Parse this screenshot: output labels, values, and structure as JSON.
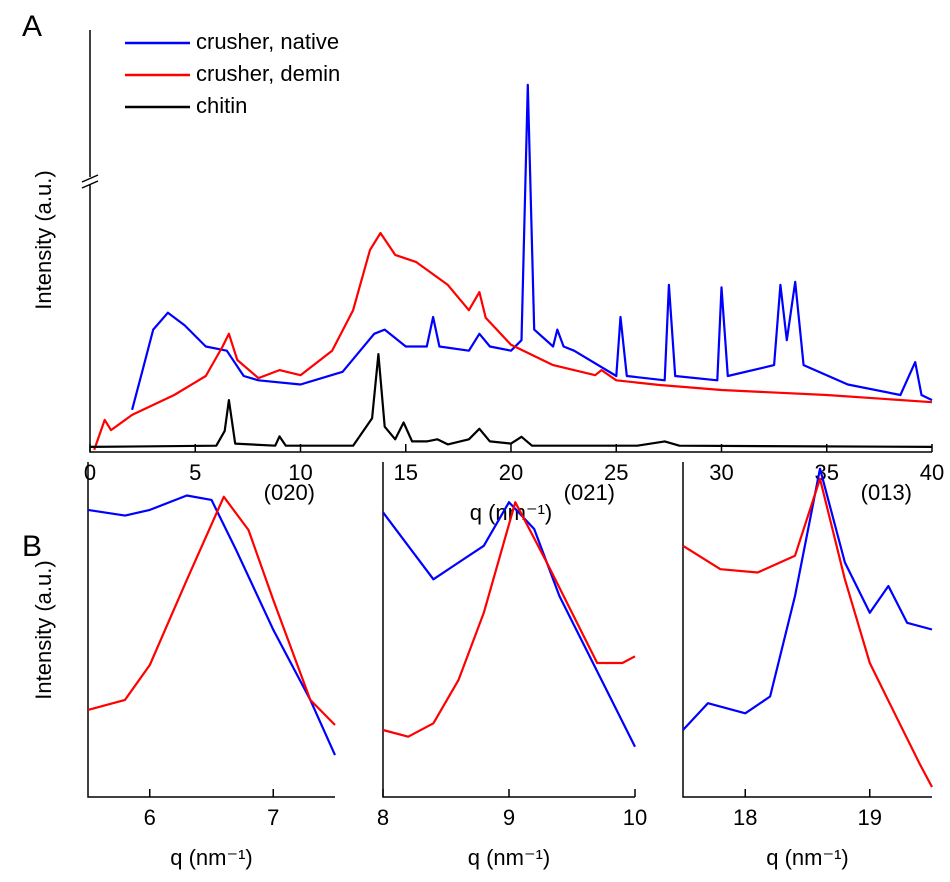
{
  "chart_data": [
    {
      "type": "line",
      "panel_label": "A",
      "xlabel": "q (nm⁻¹)",
      "ylabel": "Intensity (a.u.)",
      "xlim": [
        0,
        40
      ],
      "xticks": [
        0,
        5,
        10,
        15,
        20,
        25,
        30,
        35,
        40
      ],
      "ylim": [
        0,
        100
      ],
      "legend": "upper-left",
      "series": [
        {
          "name": "crusher, native",
          "color": "#0000ff",
          "x": [
            2,
            2.5,
            3,
            3.7,
            4.5,
            5.5,
            6.5,
            7.3,
            8,
            10,
            12,
            13.5,
            14,
            15,
            16,
            16.3,
            16.6,
            18,
            18.5,
            19,
            20,
            20.5,
            20.8,
            21.1,
            22,
            22.2,
            22.5,
            23,
            25,
            25.2,
            25.5,
            27.3,
            27.5,
            27.8,
            29.8,
            30,
            30.3,
            32.5,
            32.8,
            33.1,
            33.5,
            33.9,
            36,
            38.5,
            39.2,
            39.5,
            40
          ],
          "values": [
            10,
            19.4,
            29,
            33,
            30,
            25,
            24,
            18,
            17,
            16,
            19,
            28,
            29,
            25,
            25,
            32,
            25,
            24,
            28,
            25,
            24,
            26.5,
            87,
            29,
            25,
            29,
            25,
            24,
            18,
            32,
            18,
            17,
            39.6,
            18,
            17,
            39,
            18,
            20.6,
            39.6,
            26.5,
            40.3,
            20.6,
            16,
            13.5,
            21.3,
            13.5,
            12.3
          ]
        },
        {
          "name": "crusher, demin",
          "color": "#ff0000",
          "x": [
            0.2,
            0.7,
            1,
            2,
            4,
            5.5,
            6.3,
            6.6,
            7,
            8,
            9,
            10,
            11.5,
            12.5,
            13.3,
            13.8,
            14.5,
            15.5,
            17,
            18,
            18.5,
            18.8,
            20,
            22,
            24,
            24.3,
            25,
            27,
            30,
            35,
            40
          ],
          "values": [
            0.5,
            7.6,
            5.2,
            8.8,
            13.5,
            18,
            25,
            28,
            21.8,
            17.5,
            19.4,
            18.2,
            24,
            33.6,
            47.9,
            51.9,
            46.7,
            45,
            39.6,
            33.6,
            37.9,
            31.8,
            25.4,
            20.6,
            18.2,
            19.4,
            17,
            15.9,
            14.7,
            13.5,
            11.8
          ]
        },
        {
          "name": "chitin",
          "color": "#000000",
          "x": [
            0,
            6,
            6.4,
            6.6,
            6.9,
            8.8,
            9,
            9.3,
            12.5,
            13.4,
            13.7,
            14,
            14.5,
            14.9,
            15.3,
            16,
            16.5,
            17,
            18,
            18.5,
            19,
            20,
            20.5,
            21,
            26,
            27.3,
            28,
            40
          ],
          "values": [
            1.2,
            1.5,
            5,
            12.3,
            2,
            1.5,
            3.7,
            1.5,
            1.5,
            8,
            23.2,
            6,
            3,
            7,
            2.5,
            2.5,
            3,
            1.8,
            3,
            5.5,
            2.5,
            2,
            3.6,
            1.5,
            1.5,
            2.5,
            1.5,
            1.2
          ]
        }
      ]
    },
    {
      "type": "line",
      "panel_label": "B",
      "annotation": "(020)",
      "xlabel": "q (nm⁻¹)",
      "ylabel": "Intensity (a.u.)",
      "xlim": [
        5.5,
        7.5
      ],
      "xticks": [
        6,
        7
      ],
      "ylim": [
        0,
        100
      ],
      "series": [
        {
          "color": "#0000ff",
          "x": [
            5.5,
            5.8,
            6.0,
            6.3,
            6.5,
            6.7,
            7.0,
            7.3,
            7.5
          ],
          "values": [
            85.7,
            84,
            85.7,
            90,
            88.7,
            73.7,
            49.9,
            29,
            12.5
          ]
        },
        {
          "color": "#ff0000",
          "x": [
            5.5,
            5.8,
            6.0,
            6.3,
            6.6,
            6.8,
            7.0,
            7.3,
            7.5
          ],
          "values": [
            26,
            29,
            39.4,
            64.8,
            89.6,
            79.7,
            58.8,
            29,
            21.5
          ]
        }
      ]
    },
    {
      "type": "line",
      "annotation": "(021)",
      "xlabel": "q (nm⁻¹)",
      "xlim": [
        8,
        10
      ],
      "xticks": [
        8,
        9,
        10
      ],
      "ylim": [
        0,
        100
      ],
      "series": [
        {
          "color": "#0000ff",
          "x": [
            8,
            8.2,
            8.4,
            8.6,
            8.8,
            9.0,
            9.2,
            9.4,
            9.6,
            9.8,
            10
          ],
          "values": [
            85,
            75,
            65,
            70,
            75,
            88,
            80,
            60,
            45,
            30,
            15
          ]
        },
        {
          "color": "#ff0000",
          "x": [
            8,
            8.2,
            8.4,
            8.6,
            8.8,
            9.05,
            9.3,
            9.5,
            9.7,
            9.9,
            10
          ],
          "values": [
            20,
            18,
            22,
            35,
            55,
            88,
            70,
            55,
            40,
            40,
            42
          ]
        }
      ]
    },
    {
      "type": "line",
      "annotation": "(013)",
      "xlabel": "q (nm⁻¹)",
      "xlim": [
        17.5,
        19.5
      ],
      "xticks": [
        18,
        19
      ],
      "ylim": [
        0,
        100
      ],
      "series": [
        {
          "color": "#0000ff",
          "x": [
            17.5,
            17.7,
            18.0,
            18.2,
            18.4,
            18.6,
            18.8,
            19.0,
            19.15,
            19.3,
            19.5
          ],
          "values": [
            20,
            28,
            25,
            30,
            60,
            98,
            70,
            55,
            63,
            52,
            50
          ]
        },
        {
          "color": "#ff0000",
          "x": [
            17.5,
            17.8,
            18.1,
            18.4,
            18.6,
            18.8,
            19.0,
            19.2,
            19.4,
            19.5
          ],
          "values": [
            75,
            68,
            67,
            72,
            95,
            65,
            40,
            25,
            10,
            3
          ]
        }
      ]
    }
  ]
}
